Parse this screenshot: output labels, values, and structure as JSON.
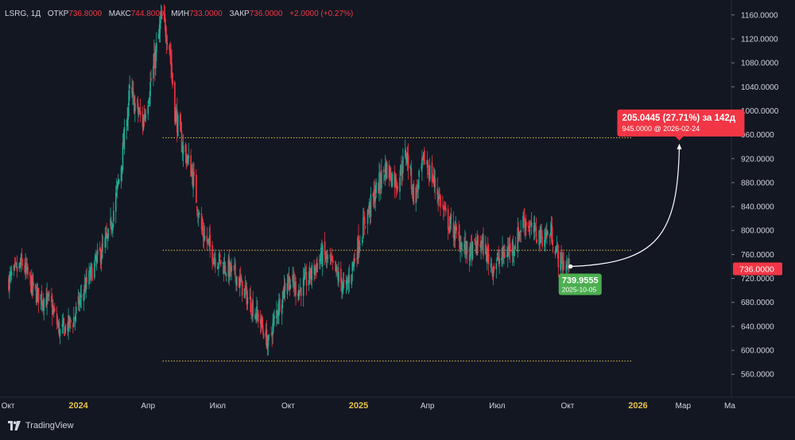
{
  "legend": {
    "symbol": "LSRG, 1Д",
    "open_label": "ОТКР",
    "open": "736.8000",
    "high_label": "МАКС",
    "high": "744.8000",
    "low_label": "МИН",
    "low": "733.0000",
    "close_label": "ЗАКР",
    "close": "736.0000",
    "change": "+2.0000 (+0.27%)"
  },
  "branding": {
    "name": "TradingView",
    "icon": "tradingview-logo-icon"
  },
  "chart_data": {
    "type": "candlestick",
    "symbol": "LSRG",
    "timeframe": "1Д",
    "y_axis": {
      "ylim": [
        550,
        1170
      ],
      "ticks": [
        560,
        600,
        640,
        680,
        720,
        760,
        800,
        840,
        880,
        920,
        960,
        1000,
        1040,
        1080,
        1120,
        1160
      ],
      "tick_labels": [
        "560.0000",
        "600.0000",
        "640.0000",
        "680.0000",
        "720.0000",
        "760.0000",
        "800.0000",
        "840.0000",
        "880.0000",
        "920.0000",
        "960.0000",
        "1000.0000",
        "1040.0000",
        "1080.0000",
        "1120.0000",
        "1160.0000"
      ],
      "side": "right"
    },
    "x_axis": {
      "range": [
        "2023-10-01",
        "2026-05-01"
      ],
      "tick_dates": [
        "2023-10-01",
        "2024-01-01",
        "2024-04-01",
        "2024-07-01",
        "2024-10-01",
        "2025-01-01",
        "2025-04-01",
        "2025-07-01",
        "2025-10-01",
        "2026-01-01",
        "2026-03-01",
        "2026-05-01"
      ],
      "tick_labels": [
        "Окт",
        "2024",
        "Апр",
        "Июл",
        "Окт",
        "2025",
        "Апр",
        "Июл",
        "Окт",
        "2026",
        "Мар",
        "Ма"
      ],
      "bold_labels": [
        "2024",
        "2025",
        "2026"
      ]
    },
    "grid": false,
    "price_points": [
      {
        "date": "2023-10-01",
        "price": 715
      },
      {
        "date": "2023-10-20",
        "price": 745
      },
      {
        "date": "2023-11-05",
        "price": 695
      },
      {
        "date": "2023-11-25",
        "price": 680
      },
      {
        "date": "2023-12-08",
        "price": 630
      },
      {
        "date": "2023-12-25",
        "price": 650
      },
      {
        "date": "2024-01-08",
        "price": 700
      },
      {
        "date": "2024-01-25",
        "price": 750
      },
      {
        "date": "2024-02-10",
        "price": 790
      },
      {
        "date": "2024-02-25",
        "price": 900
      },
      {
        "date": "2024-03-08",
        "price": 1030
      },
      {
        "date": "2024-03-25",
        "price": 980
      },
      {
        "date": "2024-04-08",
        "price": 1070
      },
      {
        "date": "2024-04-18",
        "price": 1150
      },
      {
        "date": "2024-04-28",
        "price": 1125
      },
      {
        "date": "2024-05-06",
        "price": 1000
      },
      {
        "date": "2024-05-16",
        "price": 940
      },
      {
        "date": "2024-05-28",
        "price": 900
      },
      {
        "date": "2024-06-10",
        "price": 800
      },
      {
        "date": "2024-06-25",
        "price": 760
      },
      {
        "date": "2024-07-10",
        "price": 740
      },
      {
        "date": "2024-07-25",
        "price": 725
      },
      {
        "date": "2024-08-08",
        "price": 690
      },
      {
        "date": "2024-08-25",
        "price": 650
      },
      {
        "date": "2024-09-05",
        "price": 610
      },
      {
        "date": "2024-09-15",
        "price": 660
      },
      {
        "date": "2024-09-30",
        "price": 720
      },
      {
        "date": "2024-10-15",
        "price": 700
      },
      {
        "date": "2024-10-30",
        "price": 725
      },
      {
        "date": "2024-11-15",
        "price": 760
      },
      {
        "date": "2024-11-30",
        "price": 735
      },
      {
        "date": "2024-12-15",
        "price": 700
      },
      {
        "date": "2024-12-28",
        "price": 760
      },
      {
        "date": "2025-01-10",
        "price": 820
      },
      {
        "date": "2025-01-22",
        "price": 860
      },
      {
        "date": "2025-02-05",
        "price": 905
      },
      {
        "date": "2025-02-20",
        "price": 880
      },
      {
        "date": "2025-03-05",
        "price": 930
      },
      {
        "date": "2025-03-15",
        "price": 850
      },
      {
        "date": "2025-03-28",
        "price": 920
      },
      {
        "date": "2025-04-10",
        "price": 880
      },
      {
        "date": "2025-04-25",
        "price": 820
      },
      {
        "date": "2025-05-10",
        "price": 790
      },
      {
        "date": "2025-05-25",
        "price": 760
      },
      {
        "date": "2025-06-10",
        "price": 780
      },
      {
        "date": "2025-06-25",
        "price": 740
      },
      {
        "date": "2025-07-10",
        "price": 760
      },
      {
        "date": "2025-07-25",
        "price": 780
      },
      {
        "date": "2025-08-05",
        "price": 820
      },
      {
        "date": "2025-08-15",
        "price": 800
      },
      {
        "date": "2025-08-28",
        "price": 790
      },
      {
        "date": "2025-09-10",
        "price": 795
      },
      {
        "date": "2025-09-20",
        "price": 750
      },
      {
        "date": "2025-10-05",
        "price": 736
      }
    ],
    "horizontal_lines": [
      {
        "price": 955,
        "from": "2024-04-20",
        "to": "2025-12-25",
        "color": "#e5c24a",
        "style": "dotted"
      },
      {
        "price": 767,
        "from": "2024-04-20",
        "to": "2025-12-25",
        "color": "#e5c24a",
        "style": "dotted"
      },
      {
        "price": 582,
        "from": "2024-04-20",
        "to": "2025-12-25",
        "color": "#e5c24a",
        "style": "dotted"
      }
    ],
    "projection": {
      "from": {
        "date": "2025-10-05",
        "price": 739.9555
      },
      "to": {
        "date": "2026-02-24",
        "price": 945.0
      },
      "label_line1": "205.0445 (27.71%) за 142д",
      "label_line2": "945.0000 @ 2026-02-24",
      "start_label": "739.9555",
      "start_date_label": "2025-10-05"
    },
    "last_price": {
      "price": 736.0,
      "label": "736.0000"
    },
    "colors": {
      "up": "#22ab94",
      "down": "#f23645",
      "level_line": "#e5c24a",
      "projection_label_bg": "#f23645",
      "start_label_bg": "#4caf50",
      "background": "#131722",
      "axis_text": "#d1d4dc",
      "bold_axis_text": "#e5c24a"
    }
  }
}
